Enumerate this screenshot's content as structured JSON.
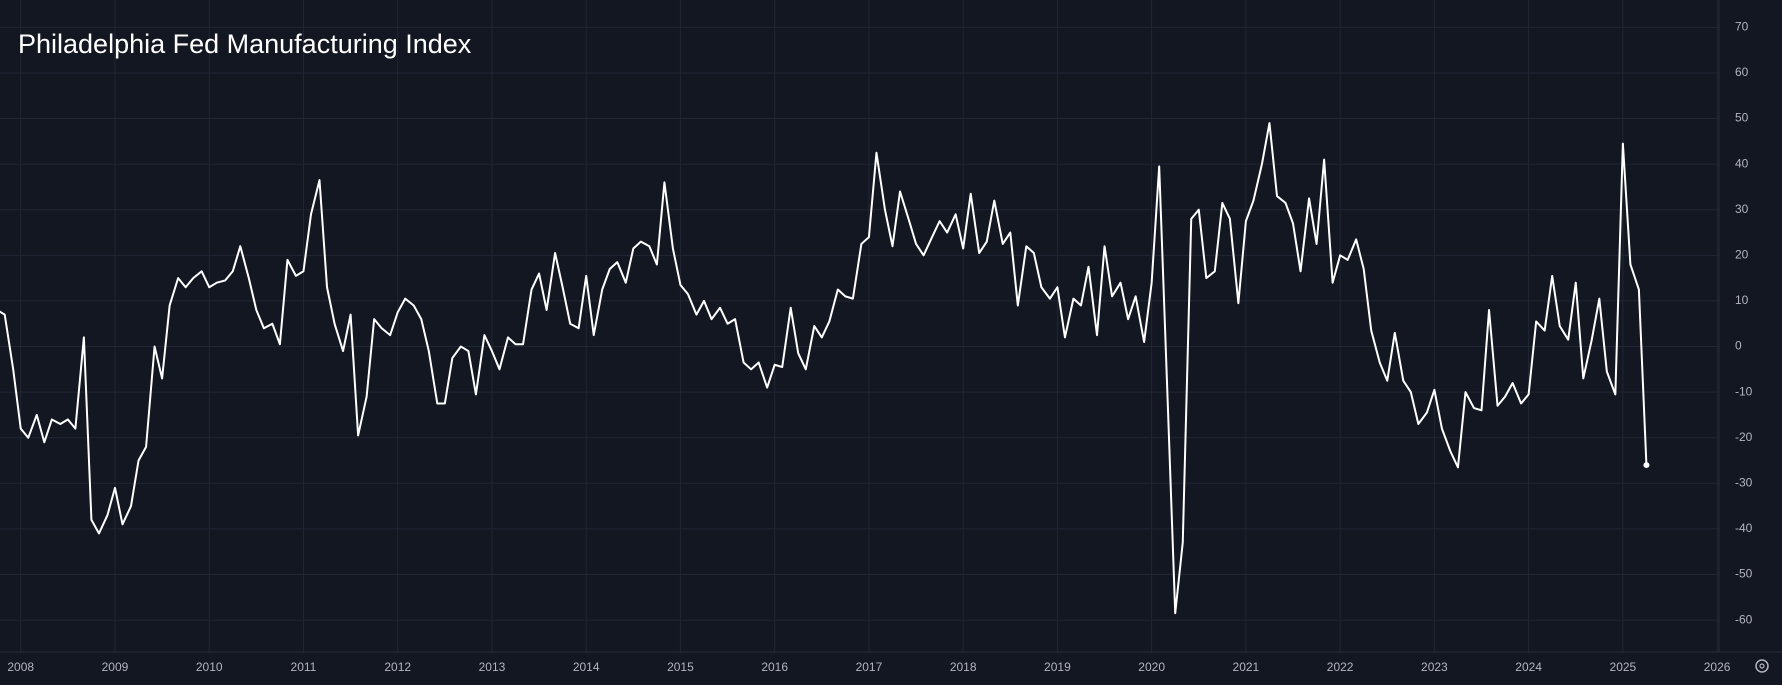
{
  "chart_data": {
    "type": "line",
    "title": "Philadelphia Fed Manufacturing Index",
    "xlim": [
      2007.78,
      2026.02
    ],
    "ylim": [
      -67,
      76
    ],
    "xticks": [
      2008,
      2009,
      2010,
      2011,
      2012,
      2013,
      2014,
      2015,
      2016,
      2017,
      2018,
      2019,
      2020,
      2021,
      2022,
      2023,
      2024,
      2025,
      2026
    ],
    "yticks": [
      -60,
      -50,
      -40,
      -30,
      -20,
      -10,
      0,
      10,
      20,
      30,
      40,
      50,
      60,
      70
    ],
    "grid": true,
    "series": [
      {
        "color": "#ffffff",
        "x": [
          2007.75,
          2007.83,
          2007.92,
          2008.0,
          2008.08,
          2008.17,
          2008.25,
          2008.33,
          2008.42,
          2008.5,
          2008.58,
          2008.67,
          2008.75,
          2008.83,
          2008.92,
          2009.0,
          2009.08,
          2009.17,
          2009.25,
          2009.33,
          2009.42,
          2009.5,
          2009.58,
          2009.67,
          2009.75,
          2009.83,
          2009.92,
          2010.0,
          2010.08,
          2010.17,
          2010.25,
          2010.33,
          2010.42,
          2010.5,
          2010.58,
          2010.67,
          2010.75,
          2010.83,
          2010.92,
          2011.0,
          2011.08,
          2011.17,
          2011.25,
          2011.33,
          2011.42,
          2011.5,
          2011.58,
          2011.67,
          2011.75,
          2011.83,
          2011.92,
          2012.0,
          2012.08,
          2012.17,
          2012.25,
          2012.33,
          2012.42,
          2012.5,
          2012.58,
          2012.67,
          2012.75,
          2012.83,
          2012.92,
          2013.0,
          2013.08,
          2013.17,
          2013.25,
          2013.33,
          2013.42,
          2013.5,
          2013.58,
          2013.67,
          2013.75,
          2013.83,
          2013.92,
          2014.0,
          2014.08,
          2014.17,
          2014.25,
          2014.33,
          2014.42,
          2014.5,
          2014.58,
          2014.67,
          2014.75,
          2014.83,
          2014.92,
          2015.0,
          2015.08,
          2015.17,
          2015.25,
          2015.33,
          2015.42,
          2015.5,
          2015.58,
          2015.67,
          2015.75,
          2015.83,
          2015.92,
          2016.0,
          2016.08,
          2016.17,
          2016.25,
          2016.33,
          2016.42,
          2016.5,
          2016.58,
          2016.67,
          2016.75,
          2016.83,
          2016.92,
          2017.0,
          2017.08,
          2017.17,
          2017.25,
          2017.33,
          2017.42,
          2017.5,
          2017.58,
          2017.67,
          2017.75,
          2017.83,
          2017.92,
          2018.0,
          2018.08,
          2018.17,
          2018.25,
          2018.33,
          2018.42,
          2018.5,
          2018.58,
          2018.67,
          2018.75,
          2018.83,
          2018.92,
          2019.0,
          2019.08,
          2019.17,
          2019.25,
          2019.33,
          2019.42,
          2019.5,
          2019.58,
          2019.67,
          2019.75,
          2019.83,
          2019.92,
          2020.0,
          2020.08,
          2020.17,
          2020.25,
          2020.33,
          2020.42,
          2020.5,
          2020.58,
          2020.67,
          2020.75,
          2020.83,
          2020.92,
          2021.0,
          2021.08,
          2021.17,
          2021.25,
          2021.33,
          2021.42,
          2021.5,
          2021.58,
          2021.67,
          2021.75,
          2021.83,
          2021.92,
          2022.0,
          2022.08,
          2022.17,
          2022.25,
          2022.33,
          2022.42,
          2022.5,
          2022.58,
          2022.67,
          2022.75,
          2022.83,
          2022.92,
          2023.0,
          2023.08,
          2023.17,
          2023.25,
          2023.33,
          2023.42,
          2023.5,
          2023.58,
          2023.67,
          2023.75,
          2023.83,
          2023.92,
          2024.0,
          2024.08,
          2024.17,
          2024.25,
          2024.33,
          2024.42,
          2024.5,
          2024.58,
          2024.67,
          2024.75,
          2024.83,
          2024.92,
          2025.0,
          2025.08,
          2025.17,
          2025.25
        ],
        "values": [
          8,
          7,
          -5,
          -18,
          -20,
          -15,
          -21,
          -16,
          -17,
          -16,
          -18,
          2,
          -38,
          -41,
          -37,
          -31,
          -39,
          -35,
          -25,
          -22,
          0,
          -7,
          9,
          15,
          13,
          15,
          16.5,
          13,
          14,
          14.5,
          16.5,
          22,
          15,
          8,
          4,
          5,
          0.5,
          19,
          15.5,
          16.5,
          29,
          36.5,
          13,
          5,
          -1,
          7,
          -19.5,
          -11,
          6,
          4,
          2.5,
          7.5,
          10.5,
          9,
          6,
          -1,
          -12.5,
          -12.5,
          -2.5,
          0,
          -1,
          -10.5,
          2.5,
          -1,
          -5,
          2,
          0.5,
          0.5,
          12.5,
          16,
          8,
          20.5,
          13,
          5,
          4,
          15.5,
          2.5,
          12.5,
          17,
          18.5,
          14,
          21.5,
          23,
          22,
          18,
          36,
          21.5,
          13.5,
          11.5,
          7,
          10,
          6,
          8.5,
          5,
          6,
          -3.5,
          -5,
          -3.5,
          -9,
          -4,
          -4.5,
          8.5,
          -1.5,
          -5,
          4.5,
          2,
          5.5,
          12.5,
          11,
          10.5,
          22.5,
          24,
          42.5,
          30,
          22,
          34,
          28,
          22.5,
          20,
          24,
          27.5,
          25,
          29,
          21.5,
          33.5,
          20.5,
          23,
          32,
          22.5,
          25,
          9,
          22,
          20.5,
          13,
          10.5,
          13,
          2,
          10.5,
          9,
          17.5,
          2.5,
          22,
          11,
          14,
          6,
          11,
          1,
          14,
          39.5,
          -12,
          -58.5,
          -43,
          28,
          30,
          15,
          16.5,
          31.5,
          28,
          9.5,
          27.5,
          32,
          40,
          49,
          33,
          31.5,
          27,
          16.5,
          32.5,
          22.5,
          41,
          14,
          20,
          19,
          23.5,
          17,
          3.5,
          -3.5,
          -7.5,
          3,
          -7.5,
          -10,
          -17,
          -14.5,
          -9.5,
          -18,
          -23,
          -26.5,
          -10,
          -13.5,
          -14,
          8,
          -13,
          -11,
          -8,
          -12.5,
          -10.5,
          5.5,
          3.5,
          15.5,
          4.5,
          1.5,
          14,
          -7,
          1.5,
          10.5,
          -5.5,
          -10.5,
          44.5,
          18,
          12.5,
          -26
        ]
      }
    ]
  }
}
